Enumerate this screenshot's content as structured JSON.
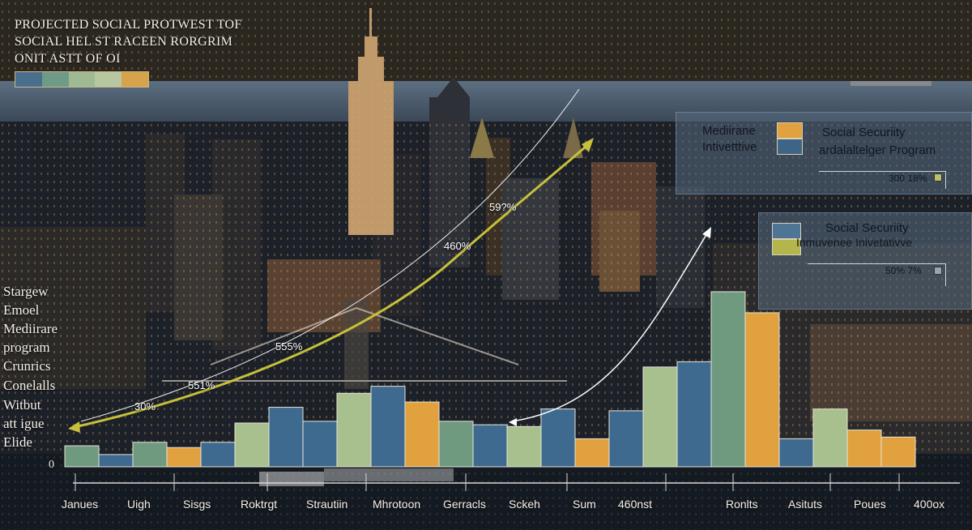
{
  "title_lines": [
    "PROJECTED SOCIAL PROTWEST TOF",
    "SOCIAL HEL ST RACEEN RORGRIM",
    "ONIT ASTT OF OI"
  ],
  "title_strip_colors": [
    "#4a6f8e",
    "#6f9a86",
    "#9fb992",
    "#b7c79f",
    "#d6a24a"
  ],
  "legend_top": {
    "left_labels": [
      "Mediirane",
      "Intivetttive"
    ],
    "right_labels": [
      "Social Securiity",
      "ardalaltelger Program"
    ],
    "swatch_colors": [
      "#e0a13e",
      "#3f6586"
    ],
    "value": "300 18%"
  },
  "legend_bottom": {
    "labels": [
      "Social Securiity",
      "Inmuvenee Inivetativve"
    ],
    "swatch_colors": [
      "#4f7595",
      "#b4b54c"
    ],
    "value": "50% 7%"
  },
  "y_labels": [
    "Stargew",
    "Emoel",
    "Mediirare",
    "program",
    "Crunrics",
    "Conelalls",
    "Witbut",
    "att igue",
    "Elide",
    "0"
  ],
  "x_labels": [
    "Janues",
    "Uigh",
    "Sisgs",
    "Roktrgt",
    "Strautiin",
    "Mhrotoon",
    "Gerracls",
    "Sckeh",
    "Sum",
    "460nst",
    "Ronlts",
    "Asituts",
    "Poues",
    "400ox"
  ],
  "annotations": [
    "59?%",
    "460%",
    "555%",
    "551%",
    "30%"
  ],
  "colors": {
    "teal_green": "#6f9a7f",
    "steel_blue": "#3f6a8f",
    "sage": "#a8c08e",
    "amber": "#e0a13e",
    "trend_curve": "#c6c03a"
  },
  "chart_data": {
    "type": "bar",
    "title": "PROJECTED SOCIAL PROTWEST TOF SOCIAL HEL ST RACEEN RORGRIM ONIT ASTT OF OI",
    "xlabel": "",
    "ylabel": "",
    "ylim": [
      0,
      1
    ],
    "grid": false,
    "bars": [
      {
        "value": 0.12,
        "color": "teal_green"
      },
      {
        "value": 0.07,
        "color": "steel_blue"
      },
      {
        "value": 0.14,
        "color": "teal_green"
      },
      {
        "value": 0.11,
        "color": "amber"
      },
      {
        "value": 0.14,
        "color": "steel_blue"
      },
      {
        "value": 0.25,
        "color": "sage"
      },
      {
        "value": 0.34,
        "color": "steel_blue"
      },
      {
        "value": 0.26,
        "color": "steel_blue"
      },
      {
        "value": 0.42,
        "color": "sage"
      },
      {
        "value": 0.46,
        "color": "steel_blue"
      },
      {
        "value": 0.37,
        "color": "amber"
      },
      {
        "value": 0.26,
        "color": "teal_green"
      },
      {
        "value": 0.24,
        "color": "steel_blue"
      },
      {
        "value": 0.23,
        "color": "sage"
      },
      {
        "value": 0.33,
        "color": "steel_blue"
      },
      {
        "value": 0.16,
        "color": "amber"
      },
      {
        "value": 0.32,
        "color": "steel_blue"
      },
      {
        "value": 0.57,
        "color": "sage"
      },
      {
        "value": 0.6,
        "color": "steel_blue"
      },
      {
        "value": 1.0,
        "color": "teal_green"
      },
      {
        "value": 0.88,
        "color": "amber"
      },
      {
        "value": 0.16,
        "color": "steel_blue"
      },
      {
        "value": 0.33,
        "color": "sage"
      },
      {
        "value": 0.21,
        "color": "amber"
      },
      {
        "value": 0.17,
        "color": "amber"
      }
    ]
  }
}
